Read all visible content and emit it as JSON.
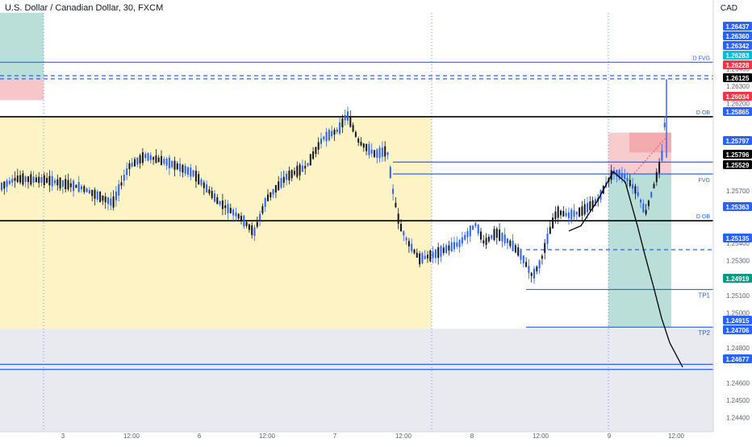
{
  "header": {
    "title": "U.S. Dollar / Canadian Dollar, 30, FXCM",
    "currency": "CAD"
  },
  "colors": {
    "background": "#ffffff",
    "up_candle": "#2962ff",
    "down_candle": "#131722",
    "level_blue": "#2962ff",
    "level_black": "#000000",
    "zone_yellow": "#fdf3c4",
    "zone_teal": "#b9dfd8",
    "zone_red": "#f6c6c8",
    "tag_red": "#f23645",
    "tag_green": "#089981",
    "tag_cyan": "#00bcd4"
  },
  "chart_data": {
    "type": "candlestick",
    "title": "U.S. Dollar / Canadian Dollar, 30, FXCM",
    "ylim": [
      1.2432,
      1.2672
    ],
    "y_ticks": [
      "1.24400",
      "1.24500",
      "1.24600",
      "1.24800",
      "1.24900",
      "1.25000",
      "1.25100",
      "1.25200",
      "1.25300",
      "1.25400",
      "1.25600",
      "1.25700",
      "1.25900",
      "1.26000",
      "1.26200",
      "1.26300",
      "1.26400"
    ],
    "x_ticks": [
      "3",
      "12:00",
      "6",
      "12:00",
      "7",
      "12:00",
      "8",
      "12:00",
      "9",
      "12:00"
    ],
    "path_points": [
      [
        0,
        1.2572
      ],
      [
        20,
        1.2577
      ],
      [
        60,
        1.2576
      ],
      [
        100,
        1.2572
      ],
      [
        140,
        1.2563
      ],
      [
        160,
        1.2584
      ],
      [
        180,
        1.259
      ],
      [
        210,
        1.2586
      ],
      [
        240,
        1.258
      ],
      [
        270,
        1.2564
      ],
      [
        300,
        1.2554
      ],
      [
        315,
        1.2546
      ],
      [
        330,
        1.2565
      ],
      [
        355,
        1.2578
      ],
      [
        380,
        1.2584
      ],
      [
        400,
        1.26
      ],
      [
        420,
        1.2605
      ],
      [
        430,
        1.2614
      ],
      [
        445,
        1.2598
      ],
      [
        465,
        1.2591
      ],
      [
        480,
        1.2593
      ],
      [
        487,
        1.257
      ],
      [
        495,
        1.2551
      ],
      [
        505,
        1.2541
      ],
      [
        520,
        1.2531
      ],
      [
        535,
        1.2533
      ],
      [
        550,
        1.2536
      ],
      [
        570,
        1.254
      ],
      [
        590,
        1.2551
      ],
      [
        600,
        1.254
      ],
      [
        615,
        1.2546
      ],
      [
        630,
        1.2541
      ],
      [
        645,
        1.2534
      ],
      [
        660,
        1.2521
      ],
      [
        670,
        1.2529
      ],
      [
        680,
        1.2545
      ],
      [
        690,
        1.2558
      ],
      [
        705,
        1.2556
      ],
      [
        720,
        1.2558
      ],
      [
        740,
        1.2564
      ],
      [
        760,
        1.2581
      ],
      [
        775,
        1.2578
      ],
      [
        790,
        1.2569
      ],
      [
        800,
        1.2557
      ],
      [
        812,
        1.2575
      ],
      [
        820,
        1.2588
      ],
      [
        826,
        1.262
      ],
      [
        828,
        1.2634
      ]
    ],
    "levels": [
      {
        "value": 1.26437,
        "color": "level_blue",
        "label": "D FVG",
        "style": "solid"
      },
      {
        "value": 1.2636,
        "color": "level_blue",
        "style": "dashed"
      },
      {
        "value": 1.26342,
        "color": "level_blue",
        "style": "dashed"
      },
      {
        "value": 1.26125,
        "color": "level_black",
        "label": "D OB",
        "style": "solid"
      },
      {
        "value": 1.25865,
        "color": "level_blue",
        "style": "solid"
      },
      {
        "value": 1.25797,
        "color": "level_blue",
        "label": "FVG",
        "style": "solid"
      },
      {
        "value": 1.25529,
        "color": "level_black",
        "label": "D OB",
        "style": "solid"
      },
      {
        "value": 1.25363,
        "color": "level_blue",
        "style": "dashed"
      },
      {
        "value": 1.25135,
        "color": "level_blue",
        "label": "TP1",
        "style": "solid"
      },
      {
        "value": 1.24919,
        "color": "level_blue",
        "label": "TP2",
        "style": "solid"
      },
      {
        "value": 1.24706,
        "color": "level_blue",
        "style": "solid"
      },
      {
        "value": 1.24677,
        "color": "level_blue",
        "style": "solid"
      }
    ],
    "price_tags": [
      {
        "text": "1.26437",
        "color": "level_blue"
      },
      {
        "text": "1.26360",
        "color": "level_blue"
      },
      {
        "text": "1.26342",
        "color": "level_blue"
      },
      {
        "text": "1.26283",
        "color": "tag_cyan"
      },
      {
        "text": "1.26228",
        "color": "tag_red"
      },
      {
        "text": "1.26125",
        "color": "level_black"
      },
      {
        "text": "1.26034",
        "color": "tag_red"
      },
      {
        "text": "1.25865",
        "color": "level_blue"
      },
      {
        "text": "1.25797",
        "color": "level_blue"
      },
      {
        "text": "1.25796",
        "color": "level_black"
      },
      {
        "text": "1.25529",
        "color": "level_black"
      },
      {
        "text": "1.25363",
        "color": "level_blue"
      },
      {
        "text": "1.25135",
        "color": "level_blue"
      },
      {
        "text": "1.24919",
        "color": "tag_green"
      },
      {
        "text": "1.24915",
        "color": "level_blue"
      },
      {
        "text": "1.24706",
        "color": "level_blue"
      },
      {
        "text": "1.24677",
        "color": "level_blue"
      }
    ],
    "projection_path": [
      [
        705,
        1.2547
      ],
      [
        720,
        1.255
      ],
      [
        740,
        1.2564
      ],
      [
        760,
        1.2581
      ],
      [
        775,
        1.2575
      ],
      [
        790,
        1.255
      ],
      [
        800,
        1.2532
      ],
      [
        810,
        1.2515
      ],
      [
        820,
        1.2497
      ],
      [
        830,
        1.2483
      ],
      [
        846,
        1.2469
      ]
    ]
  }
}
